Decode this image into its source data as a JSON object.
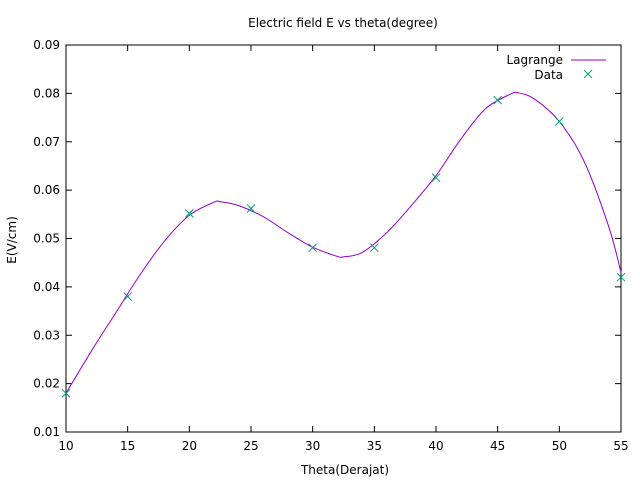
{
  "chart_data": {
    "type": "line",
    "title": "Electric field E vs theta(degree)",
    "xlabel": "Theta(Derajat)",
    "ylabel": "E(V/cm)",
    "xlim": [
      10,
      55
    ],
    "ylim": [
      0.01,
      0.09
    ],
    "xticks": [
      "10",
      "15",
      "20",
      "25",
      "30",
      "35",
      "40",
      "45",
      "50",
      "55"
    ],
    "yticks": [
      "0.01",
      "0.02",
      "0.03",
      "0.04",
      "0.05",
      "0.06",
      "0.07",
      "0.08",
      "0.09"
    ],
    "grid": false,
    "legend_position": "top-right",
    "series": [
      {
        "name": "Lagrange",
        "style": "line",
        "color": "#9400d3",
        "x": [
          10,
          12,
          14,
          16,
          18,
          20,
          22,
          22.5,
          24,
          26,
          28,
          30,
          32,
          32.5,
          34,
          36,
          38,
          40,
          42,
          44,
          46,
          46.7,
          48,
          50,
          52,
          54,
          55
        ],
        "y": [
          0.018,
          0.0265,
          0.0345,
          0.0425,
          0.0495,
          0.0548,
          0.0575,
          0.0576,
          0.0568,
          0.0545,
          0.0512,
          0.0482,
          0.0463,
          0.0462,
          0.0471,
          0.0512,
          0.0568,
          0.063,
          0.0705,
          0.0768,
          0.0798,
          0.0801,
          0.0788,
          0.0742,
          0.066,
          0.0525,
          0.043
        ]
      },
      {
        "name": "Data",
        "style": "points",
        "color": "#009e73",
        "x": [
          10,
          15,
          20,
          25,
          30,
          35,
          40,
          45,
          50,
          55
        ],
        "y": [
          0.018,
          0.038,
          0.0552,
          0.0562,
          0.0481,
          0.0481,
          0.0626,
          0.0786,
          0.0742,
          0.042
        ]
      }
    ]
  }
}
